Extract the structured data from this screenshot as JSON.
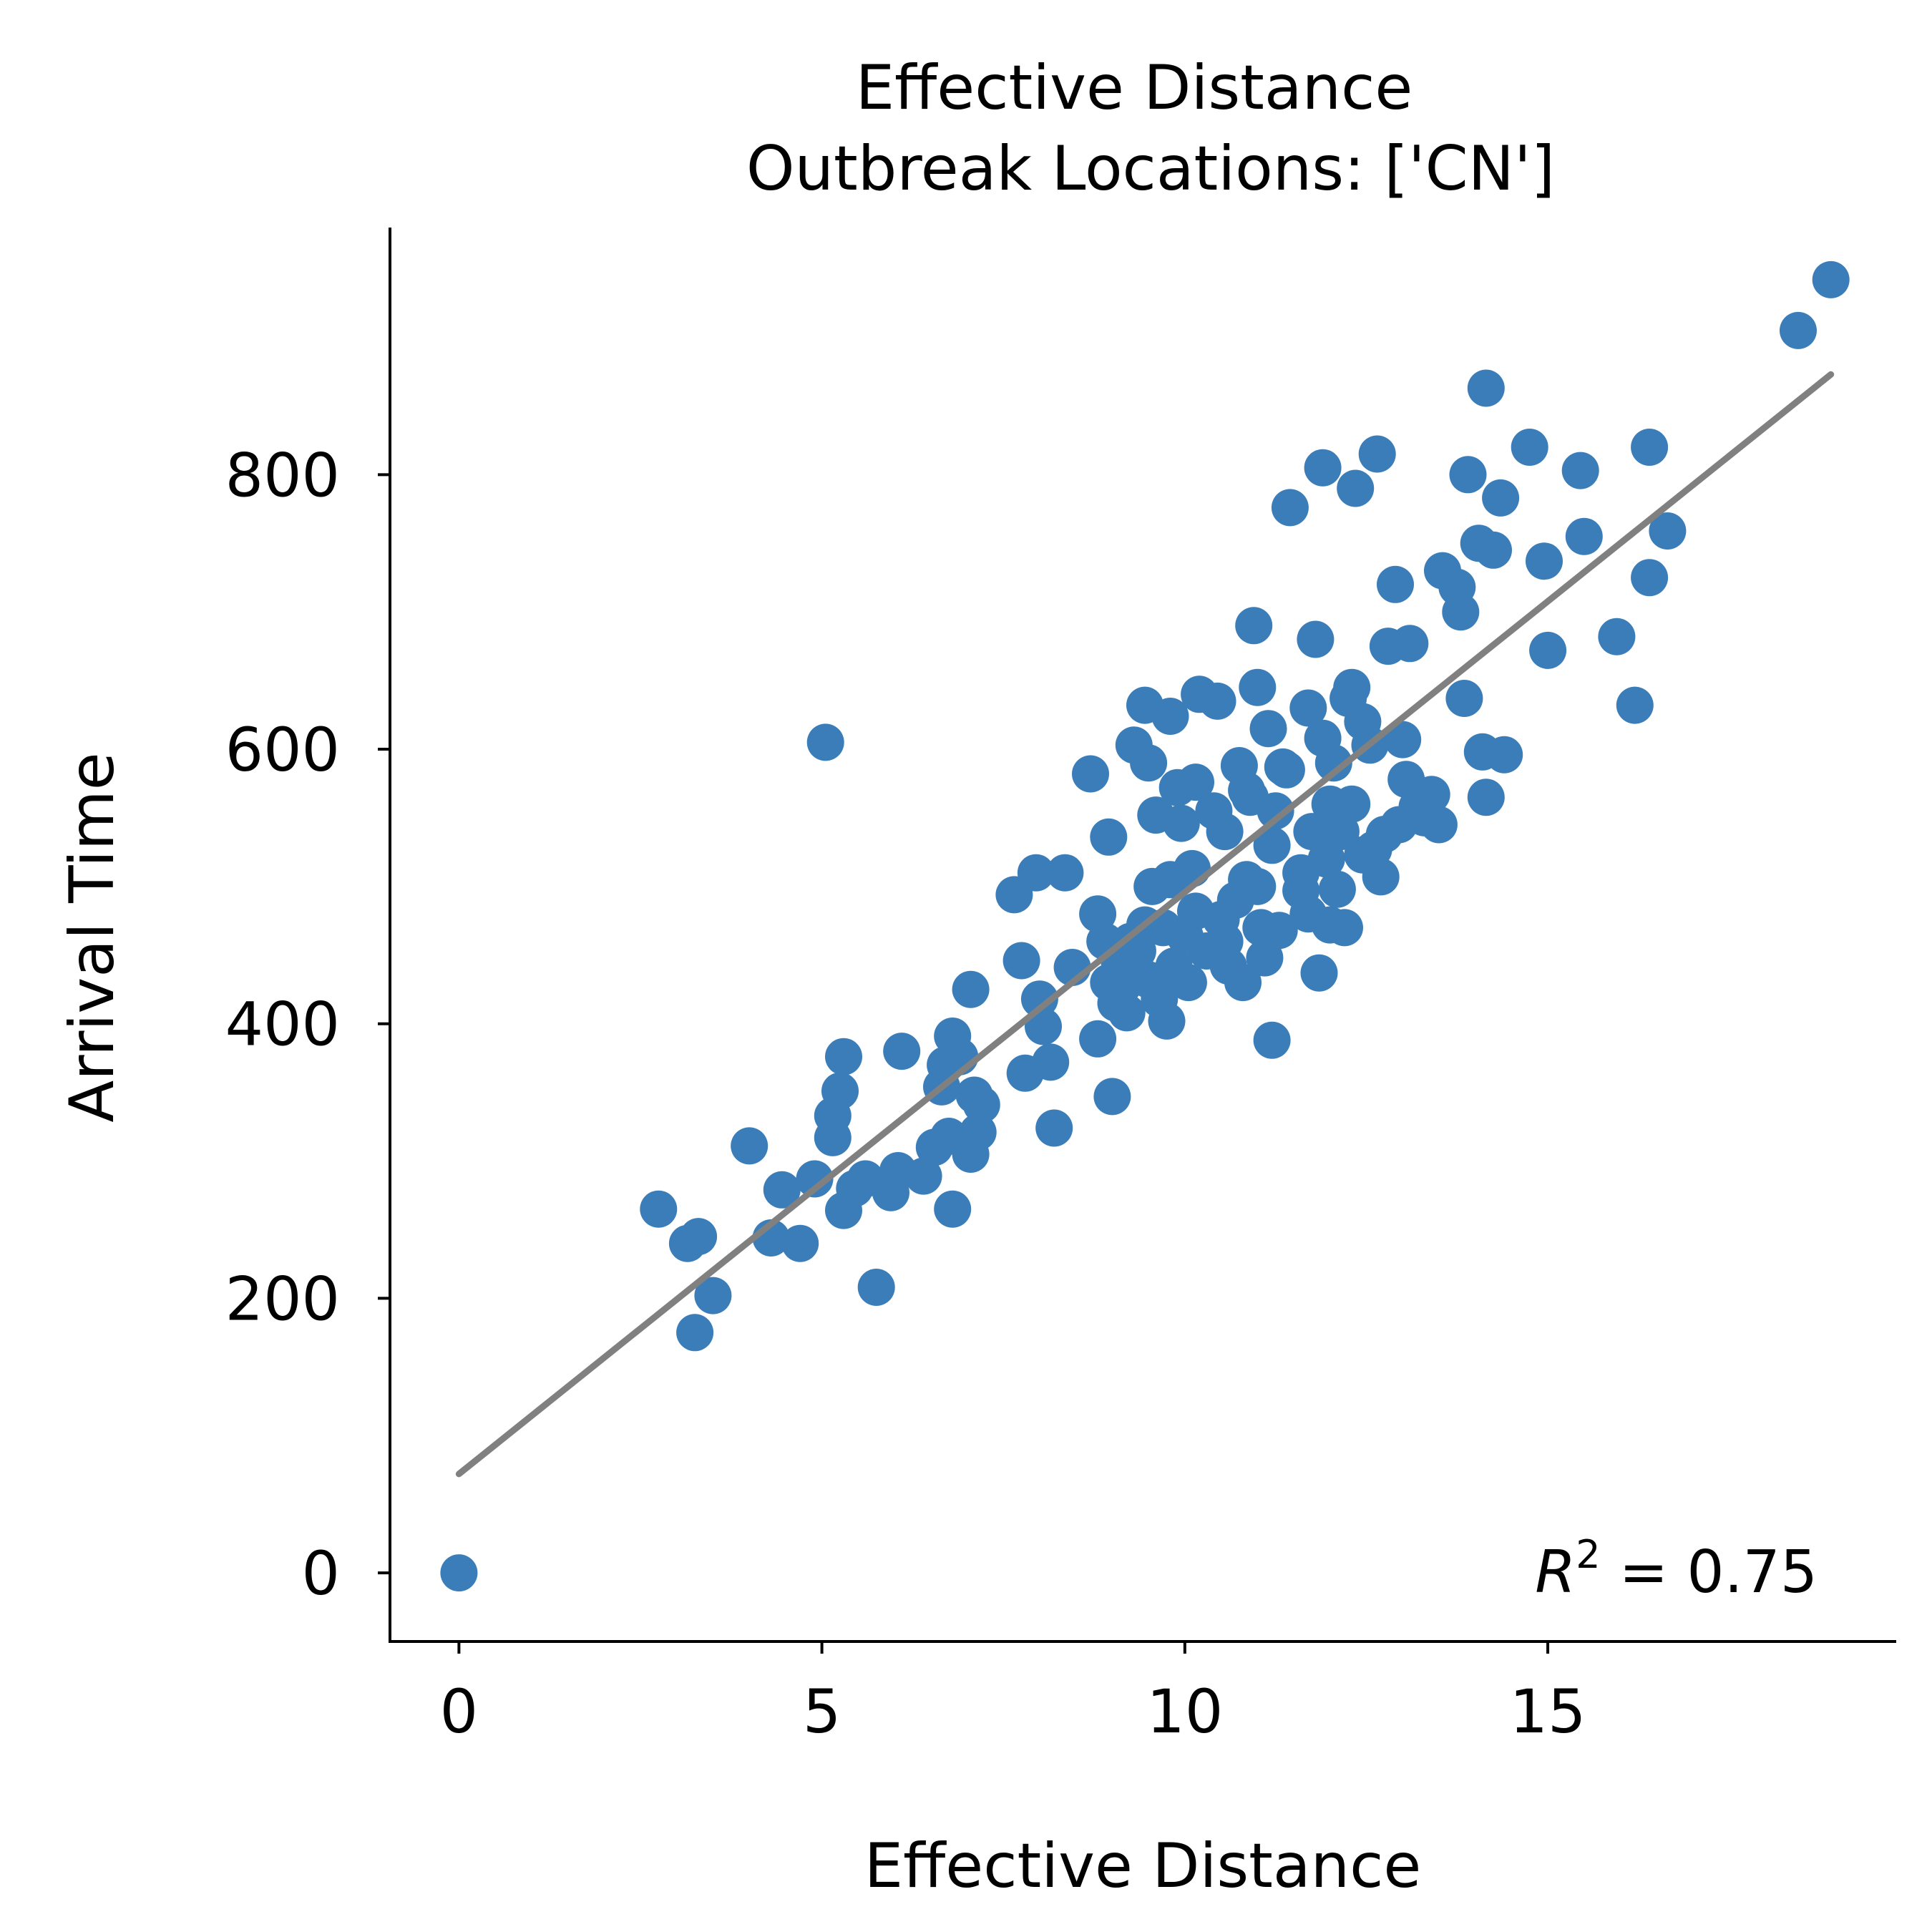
{
  "chart_data": {
    "type": "scatter",
    "title": [
      "Effective Distance",
      "Outbreak Locations: ['CN']"
    ],
    "xlabel": "Effective Distance",
    "ylabel": "Arrival Time",
    "xlim": [
      -0.95,
      19.8
    ],
    "ylim": [
      -50,
      980
    ],
    "xticks": [
      0,
      5,
      10,
      15
    ],
    "yticks": [
      0,
      200,
      400,
      600,
      800
    ],
    "grid": false,
    "legend": "none",
    "annotation": {
      "prefix": "R",
      "superscript": "2",
      "suffix": " = 0.75"
    },
    "colors": {
      "points": "#3a7db8",
      "fit_line": "#808080",
      "axes": "#000000"
    },
    "fit_line": {
      "x": [
        0,
        18.9
      ],
      "y": [
        72,
        873
      ]
    },
    "points": [
      [
        0,
        0
      ],
      [
        2.75,
        265
      ],
      [
        3.15,
        240
      ],
      [
        3.3,
        245
      ],
      [
        3.25,
        175
      ],
      [
        3.5,
        202
      ],
      [
        4.0,
        311
      ],
      [
        4.3,
        244
      ],
      [
        4.45,
        279
      ],
      [
        4.7,
        240
      ],
      [
        4.9,
        287
      ],
      [
        5.05,
        605
      ],
      [
        5.15,
        317
      ],
      [
        5.15,
        333
      ],
      [
        5.25,
        351
      ],
      [
        5.3,
        376
      ],
      [
        5.3,
        264
      ],
      [
        5.45,
        280
      ],
      [
        5.6,
        287
      ],
      [
        5.75,
        208
      ],
      [
        5.95,
        277
      ],
      [
        6.05,
        293
      ],
      [
        6.1,
        380
      ],
      [
        6.4,
        289
      ],
      [
        6.55,
        310
      ],
      [
        6.65,
        354
      ],
      [
        6.7,
        370
      ],
      [
        6.75,
        318
      ],
      [
        6.8,
        391
      ],
      [
        6.8,
        265
      ],
      [
        6.9,
        376
      ],
      [
        7.05,
        425
      ],
      [
        7.05,
        305
      ],
      [
        7.1,
        348
      ],
      [
        7.15,
        321
      ],
      [
        7.2,
        341
      ],
      [
        7.65,
        494
      ],
      [
        7.75,
        446
      ],
      [
        7.8,
        364
      ],
      [
        7.95,
        510
      ],
      [
        8.0,
        418
      ],
      [
        8.05,
        398
      ],
      [
        8.15,
        372
      ],
      [
        8.2,
        324
      ],
      [
        8.35,
        510
      ],
      [
        8.45,
        441
      ],
      [
        8.7,
        582
      ],
      [
        8.8,
        480
      ],
      [
        8.8,
        389
      ],
      [
        8.9,
        460
      ],
      [
        8.95,
        536
      ],
      [
        9.0,
        347
      ],
      [
        9.05,
        415
      ],
      [
        9.1,
        445
      ],
      [
        9.15,
        428
      ],
      [
        9.2,
        408
      ],
      [
        9.3,
        603
      ],
      [
        9.35,
        453
      ],
      [
        9.45,
        472
      ],
      [
        9.45,
        632
      ],
      [
        9.5,
        590
      ],
      [
        9.5,
        432
      ],
      [
        9.55,
        500
      ],
      [
        9.6,
        552
      ],
      [
        9.65,
        418
      ],
      [
        9.7,
        470
      ],
      [
        9.75,
        402
      ],
      [
        9.8,
        624
      ],
      [
        9.8,
        505
      ],
      [
        9.85,
        442
      ],
      [
        9.9,
        572
      ],
      [
        9.95,
        546
      ],
      [
        10.0,
        464
      ],
      [
        10.05,
        430
      ],
      [
        10.1,
        513
      ],
      [
        10.15,
        576
      ],
      [
        10.2,
        640
      ],
      [
        10.3,
        453
      ],
      [
        10.4,
        555
      ],
      [
        10.45,
        635
      ],
      [
        10.5,
        476
      ],
      [
        10.55,
        540
      ],
      [
        10.6,
        442
      ],
      [
        10.7,
        490
      ],
      [
        10.75,
        588
      ],
      [
        10.8,
        430
      ],
      [
        10.85,
        505
      ],
      [
        10.9,
        565
      ],
      [
        10.95,
        690
      ],
      [
        11.0,
        645
      ],
      [
        11.05,
        470
      ],
      [
        11.1,
        448
      ],
      [
        11.15,
        615
      ],
      [
        11.2,
        388
      ],
      [
        11.2,
        530
      ],
      [
        11.25,
        555
      ],
      [
        11.3,
        468
      ],
      [
        11.35,
        587
      ],
      [
        11.45,
        776
      ],
      [
        11.6,
        497
      ],
      [
        11.7,
        630
      ],
      [
        11.75,
        540
      ],
      [
        11.8,
        680
      ],
      [
        11.85,
        437
      ],
      [
        11.9,
        608
      ],
      [
        11.95,
        520
      ],
      [
        12.0,
        560
      ],
      [
        12.05,
        590
      ],
      [
        12.1,
        498
      ],
      [
        12.2,
        470
      ],
      [
        12.25,
        637
      ],
      [
        12.3,
        645
      ],
      [
        12.35,
        790
      ],
      [
        12.45,
        523
      ],
      [
        12.55,
        603
      ],
      [
        12.65,
        815
      ],
      [
        12.7,
        507
      ],
      [
        12.75,
        538
      ],
      [
        12.8,
        675
      ],
      [
        12.9,
        720
      ],
      [
        12.95,
        545
      ],
      [
        13.0,
        607
      ],
      [
        13.05,
        578
      ],
      [
        13.1,
        677
      ],
      [
        13.3,
        550
      ],
      [
        13.4,
        567
      ],
      [
        13.5,
        545
      ],
      [
        13.55,
        730
      ],
      [
        13.75,
        718
      ],
      [
        13.8,
        700
      ],
      [
        13.85,
        637
      ],
      [
        13.9,
        800
      ],
      [
        14.05,
        750
      ],
      [
        14.1,
        598
      ],
      [
        14.15,
        565
      ],
      [
        14.25,
        745
      ],
      [
        14.35,
        783
      ],
      [
        14.4,
        596
      ],
      [
        14.75,
        820
      ],
      [
        14.95,
        737
      ],
      [
        15.0,
        672
      ],
      [
        15.45,
        803
      ],
      [
        15.5,
        755
      ],
      [
        15.95,
        682
      ],
      [
        16.2,
        632
      ],
      [
        16.4,
        820
      ],
      [
        16.4,
        725
      ],
      [
        16.65,
        759
      ],
      [
        18.45,
        905
      ],
      [
        18.9,
        942
      ],
      [
        14.15,
        863
      ],
      [
        11.9,
        805
      ],
      [
        12.15,
        540
      ],
      [
        12.3,
        560
      ],
      [
        11.6,
        510
      ],
      [
        10.15,
        482
      ],
      [
        9.25,
        460
      ],
      [
        8.95,
        430
      ],
      [
        10.55,
        460
      ],
      [
        11.0,
        500
      ],
      [
        12.6,
        527
      ],
      [
        11.7,
        480
      ],
      [
        12.0,
        472
      ],
      [
        13.2,
        558
      ],
      [
        10.85,
        570
      ],
      [
        11.4,
        585
      ],
      [
        12.45,
        620
      ]
    ]
  }
}
